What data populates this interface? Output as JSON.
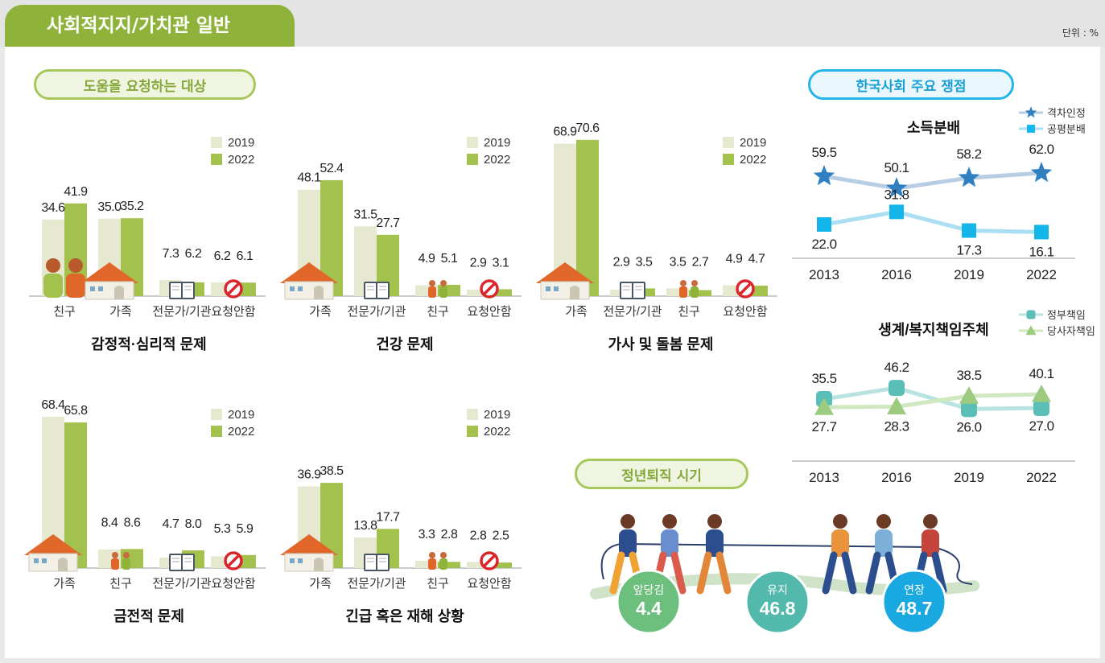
{
  "header": {
    "title": "사회적지지/가치관 일반",
    "unit": "단위 : %"
  },
  "sections": {
    "help": "도움을 요청하는 대상",
    "korea": "한국사회 주요 쟁점",
    "retire": "정년퇴직 시기"
  },
  "legend_years": [
    "2019",
    "2022"
  ],
  "colors": {
    "y2019": "#e6e9cf",
    "y2022": "#a3c24d",
    "line1": "#2f7fc1",
    "line2": "#14b6e9",
    "line3": "#5bbfb8",
    "line4": "#9ccb7f"
  },
  "chart_data": [
    {
      "type": "bar",
      "title": "감정적·심리적 문제",
      "categories": [
        "친구",
        "가족",
        "전문가/기관",
        "요청안함"
      ],
      "icons": [
        "people-icon",
        "house-icon",
        "book-icon",
        "no-icon"
      ],
      "series": [
        {
          "name": "2019",
          "values": [
            34.6,
            35.0,
            7.3,
            6.2
          ]
        },
        {
          "name": "2022",
          "values": [
            41.9,
            35.2,
            6.2,
            6.1
          ]
        }
      ],
      "labels2019": [
        "34.6",
        "35.0",
        "7.3",
        "6.2"
      ],
      "labels2022": [
        "41.9",
        "35.2",
        "6.2",
        "6.1"
      ]
    },
    {
      "type": "bar",
      "title": "건강 문제",
      "categories": [
        "가족",
        "전문가/기관",
        "친구",
        "요청안함"
      ],
      "icons": [
        "house-icon",
        "book-icon",
        "people-icon",
        "no-icon"
      ],
      "series": [
        {
          "name": "2019",
          "values": [
            48.1,
            31.5,
            4.9,
            2.9
          ]
        },
        {
          "name": "2022",
          "values": [
            52.4,
            27.7,
            5.1,
            3.1
          ]
        }
      ],
      "labels2019": [
        "48.1",
        "31.5",
        "4.9",
        "2.9"
      ],
      "labels2022": [
        "52.4",
        "27.7",
        "5.1",
        "3.1"
      ]
    },
    {
      "type": "bar",
      "title": "가사 및 돌봄 문제",
      "categories": [
        "가족",
        "전문가/기관",
        "친구",
        "요청안함"
      ],
      "icons": [
        "house-icon",
        "book-icon",
        "people-icon",
        "no-icon"
      ],
      "series": [
        {
          "name": "2019",
          "values": [
            68.9,
            2.9,
            3.5,
            4.9
          ]
        },
        {
          "name": "2022",
          "values": [
            70.6,
            3.5,
            2.7,
            4.7
          ]
        }
      ],
      "labels2019": [
        "68.9",
        "2.9",
        "3.5",
        "4.9"
      ],
      "labels2022": [
        "70.6",
        "3.5",
        "2.7",
        "4.7"
      ]
    },
    {
      "type": "bar",
      "title": "금전적 문제",
      "categories": [
        "가족",
        "친구",
        "전문가/기관",
        "요청안함"
      ],
      "icons": [
        "house-icon",
        "people-icon",
        "book-icon",
        "no-icon"
      ],
      "series": [
        {
          "name": "2019",
          "values": [
            68.4,
            8.4,
            4.7,
            5.3
          ]
        },
        {
          "name": "2022",
          "values": [
            65.8,
            8.6,
            8.0,
            5.9
          ]
        }
      ],
      "labels2019": [
        "68.4",
        "8.4",
        "4.7",
        "5.3"
      ],
      "labels2022": [
        "65.8",
        "8.6",
        "8.0",
        "5.9"
      ]
    },
    {
      "type": "bar",
      "title": "긴급 혹은 재해 상황",
      "categories": [
        "가족",
        "전문가/기관",
        "친구",
        "요청안함"
      ],
      "icons": [
        "house-icon",
        "book-icon",
        "people-icon",
        "no-icon"
      ],
      "series": [
        {
          "name": "2019",
          "values": [
            36.9,
            13.8,
            3.3,
            2.8
          ]
        },
        {
          "name": "2022",
          "values": [
            38.5,
            17.7,
            2.8,
            2.5
          ]
        }
      ],
      "labels2019": [
        "36.9",
        "13.8",
        "3.3",
        "2.8"
      ],
      "labels2022": [
        "38.5",
        "17.7",
        "2.8",
        "2.5"
      ]
    },
    {
      "type": "line",
      "title": "소득분배",
      "x": [
        "2013",
        "2016",
        "2019",
        "2022"
      ],
      "series": [
        {
          "name": "격차인정",
          "values": [
            59.5,
            50.1,
            58.2,
            62.0
          ],
          "labels": [
            "59.5",
            "50.1",
            "58.2",
            "62.0"
          ],
          "marker": "star"
        },
        {
          "name": "공평분배",
          "values": [
            22.0,
            31.8,
            17.3,
            16.1
          ],
          "labels": [
            "22.0",
            "31.8",
            "17.3",
            "16.1"
          ],
          "marker": "square"
        }
      ]
    },
    {
      "type": "line",
      "title": "생계/복지책임주체",
      "x": [
        "2013",
        "2016",
        "2019",
        "2022"
      ],
      "series": [
        {
          "name": "정부책임",
          "values": [
            35.5,
            46.2,
            26.0,
            27.0
          ],
          "labels": [
            "35.5",
            "46.2",
            "26.0",
            "27.0"
          ],
          "marker": "rsquare"
        },
        {
          "name": "당사자책임",
          "values": [
            27.7,
            28.3,
            38.5,
            40.1
          ],
          "labels": [
            "27.7",
            "28.3",
            "38.5",
            "40.1"
          ],
          "marker": "triangle"
        }
      ]
    },
    {
      "type": "bubble",
      "title": "정년퇴직 시기",
      "items": [
        {
          "label": "앞당김",
          "value": "4.4",
          "color": "#6cbf7c"
        },
        {
          "label": "유지",
          "value": "46.8",
          "color": "#53b9ad"
        },
        {
          "label": "연장",
          "value": "48.7",
          "color": "#1aa8e0"
        }
      ]
    }
  ]
}
